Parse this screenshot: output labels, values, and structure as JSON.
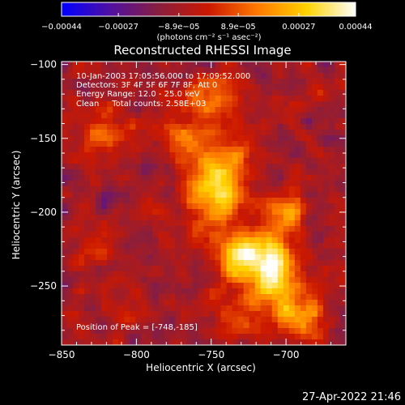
{
  "chart_data": {
    "type": "heatmap",
    "title": "Reconstructed RHESSI Image",
    "xlabel": "Heliocentric X (arcsec)",
    "ylabel": "Heliocentric Y (arcsec)",
    "xlim": [
      -850,
      -660
    ],
    "ylim": [
      -290,
      -98
    ],
    "x_ticks": [
      -850,
      -800,
      -750,
      -700
    ],
    "x_tick_labels": [
      "−850",
      "−800",
      "−750",
      "−700"
    ],
    "y_ticks": [
      -100,
      -150,
      -200,
      -250
    ],
    "y_tick_labels": [
      "−100",
      "−150",
      "−200",
      "−250"
    ],
    "colorbar": {
      "min": -0.00044,
      "max": 0.00044,
      "ticks": [
        -0.00044,
        -0.00027,
        -8.9e-05,
        8.9e-05,
        0.00027,
        0.00044
      ],
      "tick_labels": [
        "−0.00044",
        "−0.00027",
        "−8.9e−05",
        "8.9e−05",
        "0.00027",
        "0.00044"
      ],
      "unit_label": "(photons cm⁻² s⁻¹ asec⁻²)",
      "colors": [
        "#0000ff",
        "#5010a0",
        "#8a1e3c",
        "#cc1800",
        "#ff7a00",
        "#ffd200",
        "#ffffff"
      ]
    },
    "annotations": [
      "10-Jan-2003 17:05:56.000 to 17:09:52.000",
      "Detectors: 3F 4F 5F 6F 7F 8F, Att 0",
      "Energy Range: 12.0 - 25.0 keV",
      "Clean     Total counts: 2.58E+03"
    ],
    "peak_label": "Position of Peak = [-748,-185]",
    "peak": [
      -748,
      -185
    ],
    "flux_sources": [
      {
        "x": -748,
        "y": -185,
        "sx": 12,
        "sy": 16,
        "amp": 0.00042
      },
      {
        "x": -726,
        "y": -230,
        "sx": 16,
        "sy": 14,
        "amp": 0.0004
      },
      {
        "x": -707,
        "y": -245,
        "sx": 12,
        "sy": 18,
        "amp": 0.00036
      },
      {
        "x": -752,
        "y": -122,
        "sx": 14,
        "sy": 10,
        "amp": 0.0003
      },
      {
        "x": -768,
        "y": -150,
        "sx": 10,
        "sy": 10,
        "amp": 0.00026
      },
      {
        "x": -735,
        "y": -160,
        "sx": 10,
        "sy": 12,
        "amp": 0.00024
      },
      {
        "x": -700,
        "y": -200,
        "sx": 8,
        "sy": 10,
        "amp": 0.00028
      },
      {
        "x": -690,
        "y": -270,
        "sx": 12,
        "sy": 12,
        "amp": 0.00026
      },
      {
        "x": -736,
        "y": -275,
        "sx": 10,
        "sy": 10,
        "amp": 0.00018
      },
      {
        "x": -820,
        "y": -145,
        "sx": 14,
        "sy": 14,
        "amp": 0.00017
      },
      {
        "x": -830,
        "y": -225,
        "sx": 10,
        "sy": 12,
        "amp": 0.0001
      },
      {
        "x": -800,
        "y": -270,
        "sx": 12,
        "sy": 8,
        "amp": 0.0001
      },
      {
        "x": -680,
        "y": -130,
        "sx": 10,
        "sy": 10,
        "amp": 8e-05
      }
    ],
    "background_level": -0.0001,
    "noise_amplitude": 0.00012,
    "grid": false
  },
  "footer": {
    "timestamp": "27-Apr-2022 21:46"
  }
}
